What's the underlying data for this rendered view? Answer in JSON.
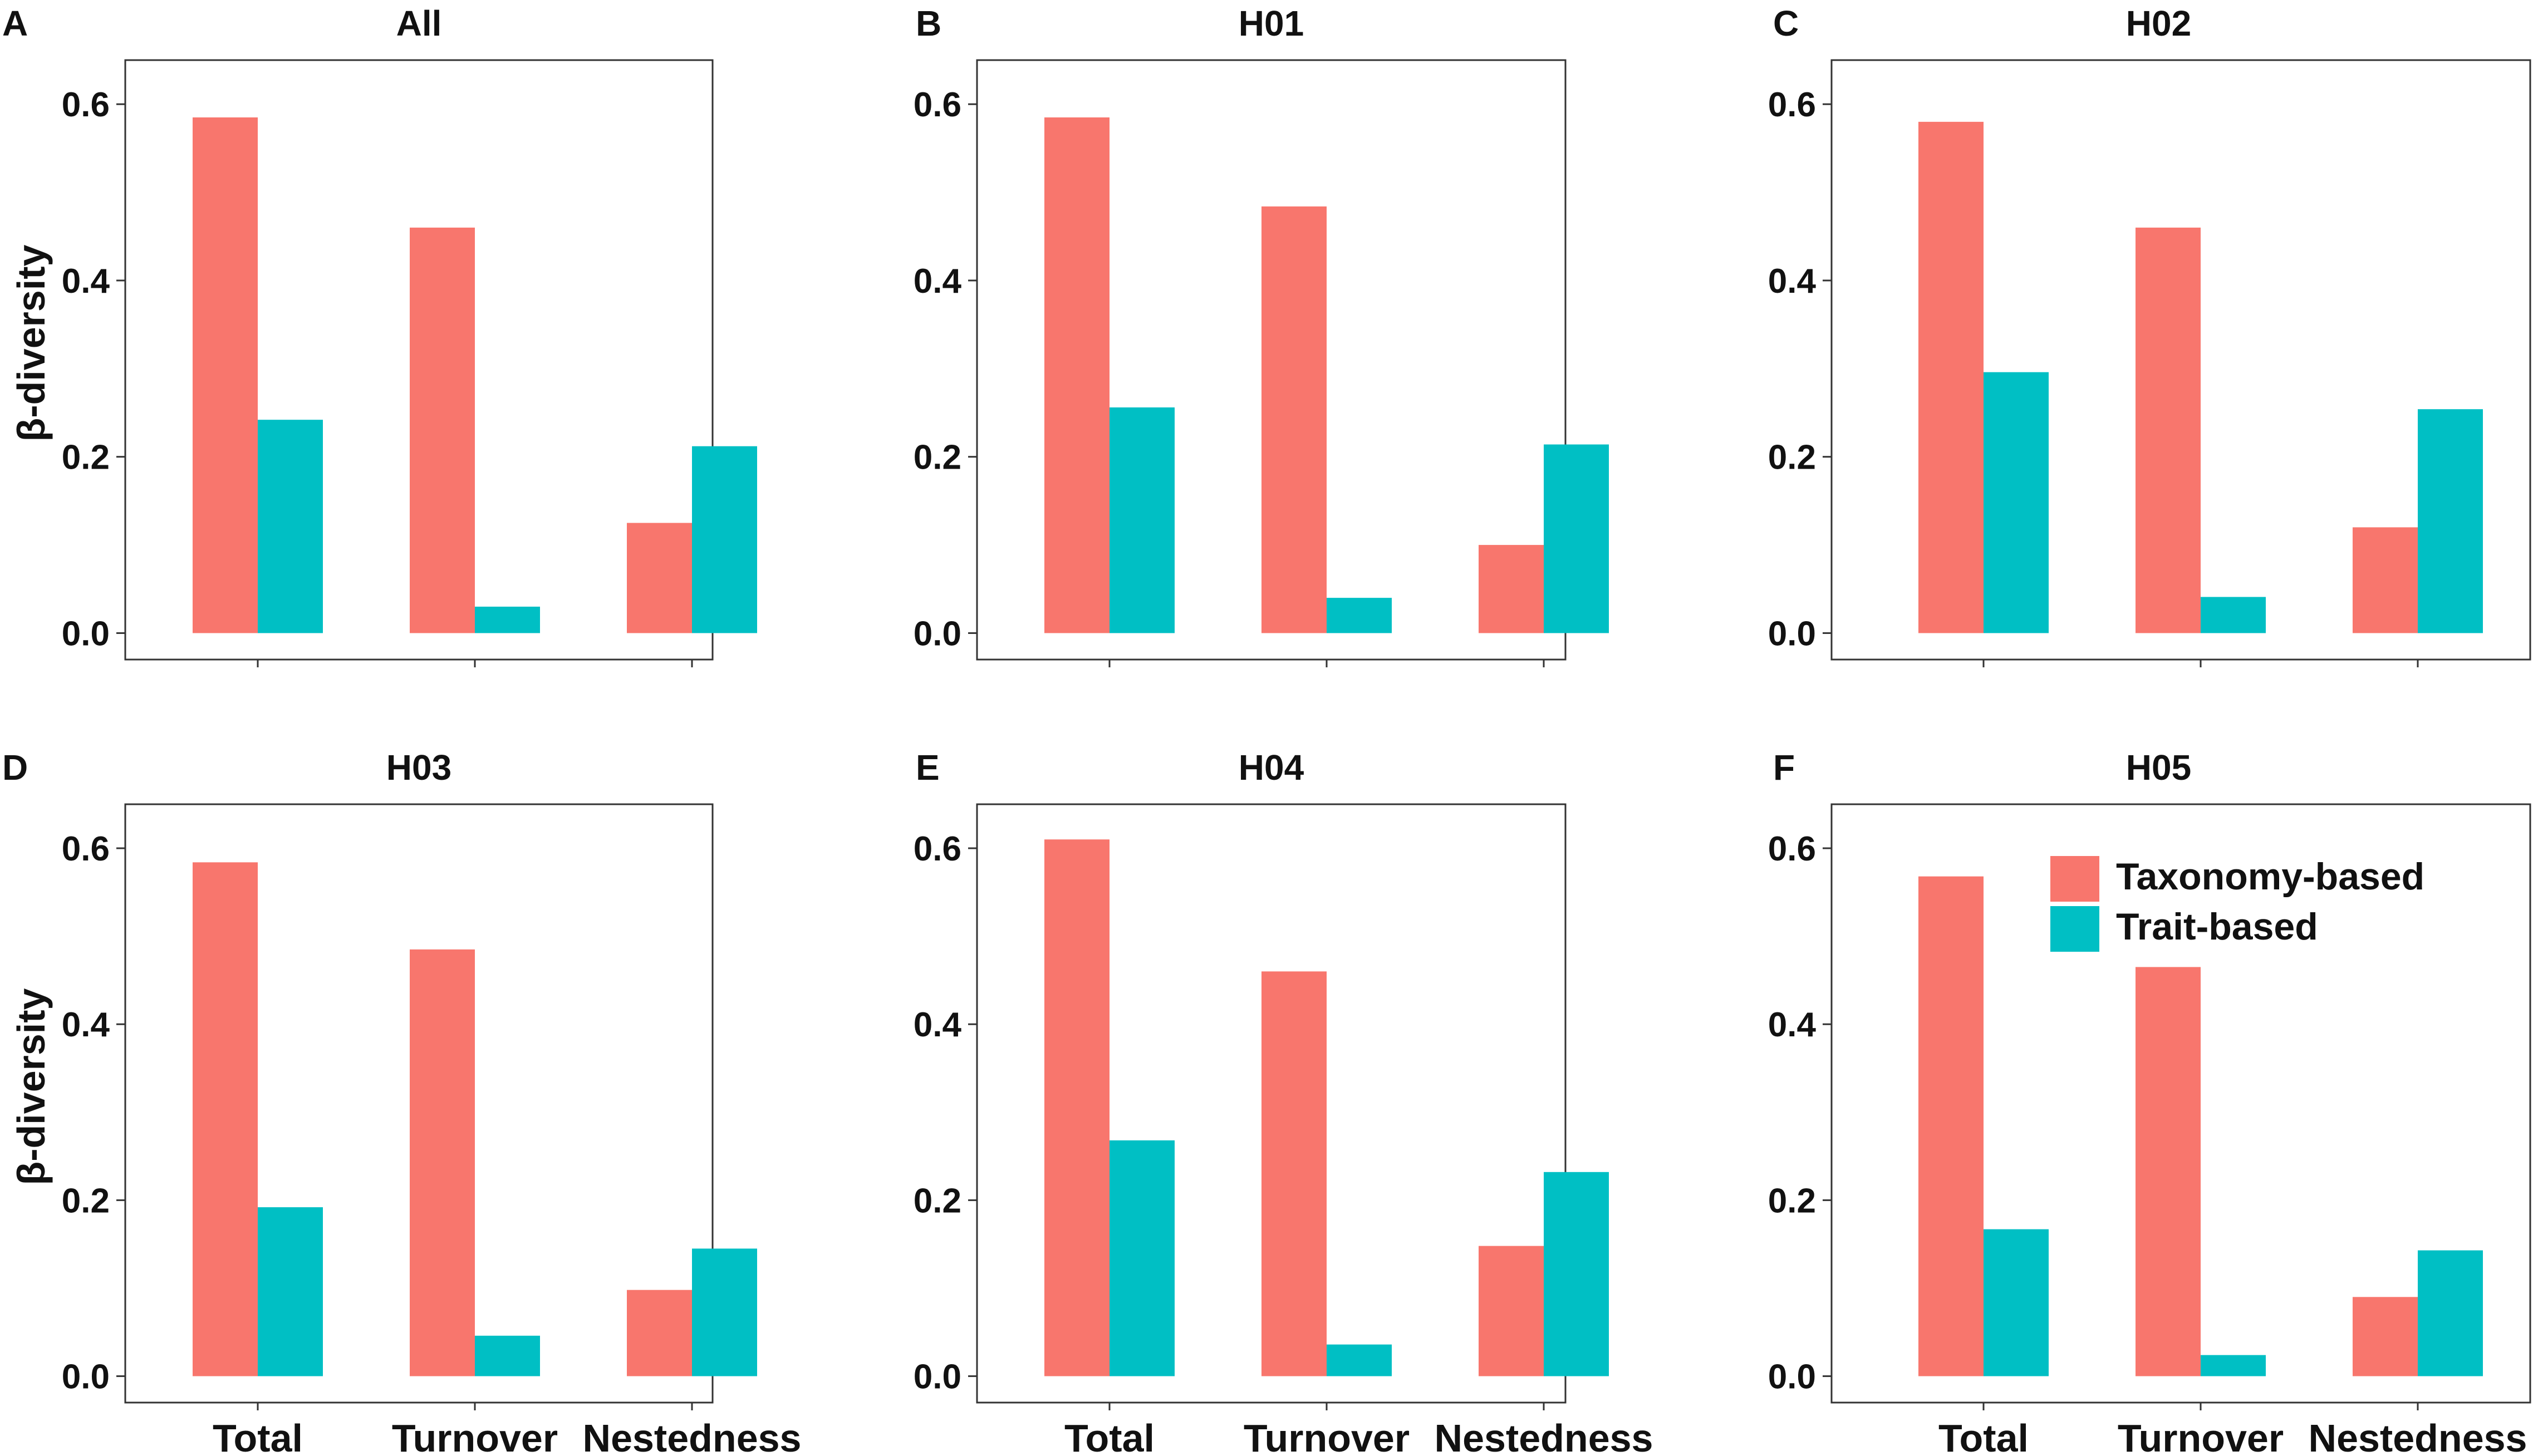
{
  "colors": {
    "taxonomy": "#F8766D",
    "trait": "#00BFC4"
  },
  "chart_data": [
    {
      "letter": "A",
      "title": "All",
      "type": "bar",
      "categories": [
        "Total",
        "Turnover",
        "Nestedness"
      ],
      "series": [
        {
          "name": "Taxonomy-based",
          "values": [
            0.585,
            0.46,
            0.125
          ]
        },
        {
          "name": "Trait-based",
          "values": [
            0.242,
            0.03,
            0.212
          ]
        }
      ],
      "ylabel": "β-diversity",
      "ylim": [
        -0.03,
        0.65
      ],
      "yticks": [
        0.0,
        0.2,
        0.4,
        0.6
      ],
      "ytick_labels": [
        "0.0",
        "0.2",
        "0.4",
        "0.6"
      ],
      "legend": false,
      "grid": false
    },
    {
      "letter": "B",
      "title": "H01",
      "type": "bar",
      "categories": [
        "Total",
        "Turnover",
        "Nestedness"
      ],
      "series": [
        {
          "name": "Taxonomy-based",
          "values": [
            0.585,
            0.484,
            0.1
          ]
        },
        {
          "name": "Trait-based",
          "values": [
            0.256,
            0.04,
            0.214
          ]
        }
      ],
      "ylabel": "",
      "ylim": [
        -0.03,
        0.65
      ],
      "yticks": [
        0.0,
        0.2,
        0.4,
        0.6
      ],
      "ytick_labels": [
        "0.0",
        "0.2",
        "0.4",
        "0.6"
      ],
      "legend": false,
      "grid": false
    },
    {
      "letter": "C",
      "title": "H02",
      "type": "bar",
      "categories": [
        "Total",
        "Turnover",
        "Nestedness"
      ],
      "series": [
        {
          "name": "Taxonomy-based",
          "values": [
            0.58,
            0.46,
            0.12
          ]
        },
        {
          "name": "Trait-based",
          "values": [
            0.296,
            0.041,
            0.254
          ]
        }
      ],
      "ylabel": "",
      "ylim": [
        -0.03,
        0.65
      ],
      "yticks": [
        0.0,
        0.2,
        0.4,
        0.6
      ],
      "ytick_labels": [
        "0.0",
        "0.2",
        "0.4",
        "0.6"
      ],
      "legend": false,
      "grid": false
    },
    {
      "letter": "D",
      "title": "H03",
      "type": "bar",
      "categories": [
        "Total",
        "Turnover",
        "Nestedness"
      ],
      "series": [
        {
          "name": "Taxonomy-based",
          "values": [
            0.584,
            0.485,
            0.098
          ]
        },
        {
          "name": "Trait-based",
          "values": [
            0.192,
            0.046,
            0.145
          ]
        }
      ],
      "ylabel": "β-diversity",
      "ylim": [
        -0.03,
        0.65
      ],
      "yticks": [
        0.0,
        0.2,
        0.4,
        0.6
      ],
      "ytick_labels": [
        "0.0",
        "0.2",
        "0.4",
        "0.6"
      ],
      "legend": false,
      "grid": false
    },
    {
      "letter": "E",
      "title": "H04",
      "type": "bar",
      "categories": [
        "Total",
        "Turnover",
        "Nestedness"
      ],
      "series": [
        {
          "name": "Taxonomy-based",
          "values": [
            0.61,
            0.46,
            0.148
          ]
        },
        {
          "name": "Trait-based",
          "values": [
            0.268,
            0.036,
            0.232
          ]
        }
      ],
      "ylabel": "",
      "ylim": [
        -0.03,
        0.65
      ],
      "yticks": [
        0.0,
        0.2,
        0.4,
        0.6
      ],
      "ytick_labels": [
        "0.0",
        "0.2",
        "0.4",
        "0.6"
      ],
      "legend": false,
      "grid": false
    },
    {
      "letter": "F",
      "title": "H05",
      "type": "bar",
      "categories": [
        "Total",
        "Turnover",
        "Nestedness"
      ],
      "series": [
        {
          "name": "Taxonomy-based",
          "values": [
            0.568,
            0.465,
            0.09
          ]
        },
        {
          "name": "Trait-based",
          "values": [
            0.167,
            0.024,
            0.143
          ]
        }
      ],
      "ylabel": "",
      "ylim": [
        -0.03,
        0.65
      ],
      "yticks": [
        0.0,
        0.2,
        0.4,
        0.6
      ],
      "ytick_labels": [
        "0.0",
        "0.2",
        "0.4",
        "0.6"
      ],
      "legend": true,
      "legend_position": "top-right",
      "grid": false
    }
  ]
}
